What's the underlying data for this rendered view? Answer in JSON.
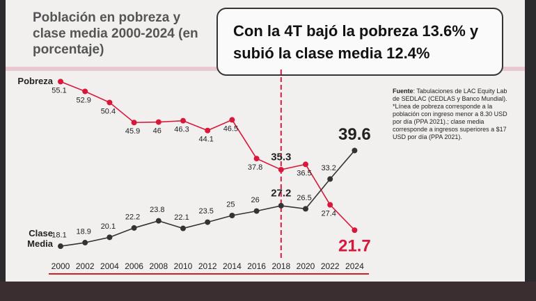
{
  "chart_data": {
    "type": "line",
    "title": "Población en pobreza y clase media 2000-2024 (en porcentaje)",
    "headline": "Con la 4T bajó la pobreza 13.6% y subió la clase media 12.4%",
    "source_label": "Fuente",
    "source_text": ": Tabulaciones de LAC Equity Lab de SEDLAC (CEDLAS y Banco Mundial). *Línea de pobreza corresponde a la población con ingreso menor a 8.30 USD por día (PPA 2021).; clase media corresponde a ingresos superiores a $17 USD por día (PPA 2021).",
    "categories": [
      "2000",
      "2002",
      "2004",
      "2006",
      "2008",
      "2010",
      "2012",
      "2014",
      "2016",
      "2018",
      "2020",
      "2022",
      "2024"
    ],
    "series": [
      {
        "name": "Pobreza",
        "color": "#d8173a",
        "values": [
          55.1,
          52.9,
          50.4,
          45.9,
          46,
          46.3,
          44.1,
          46.5,
          37.8,
          35.3,
          36.5,
          27.4,
          21.7
        ]
      },
      {
        "name": "Clase Media",
        "color": "#333333",
        "values": [
          18.1,
          18.9,
          20.1,
          22.2,
          23.8,
          22.1,
          23.5,
          25,
          26,
          27.2,
          26.5,
          33.2,
          39.6
        ]
      }
    ],
    "ylim": [
      15,
      60
    ],
    "reference_line": {
      "x": "2018",
      "color": "#e5173f",
      "style": "dashed"
    }
  }
}
